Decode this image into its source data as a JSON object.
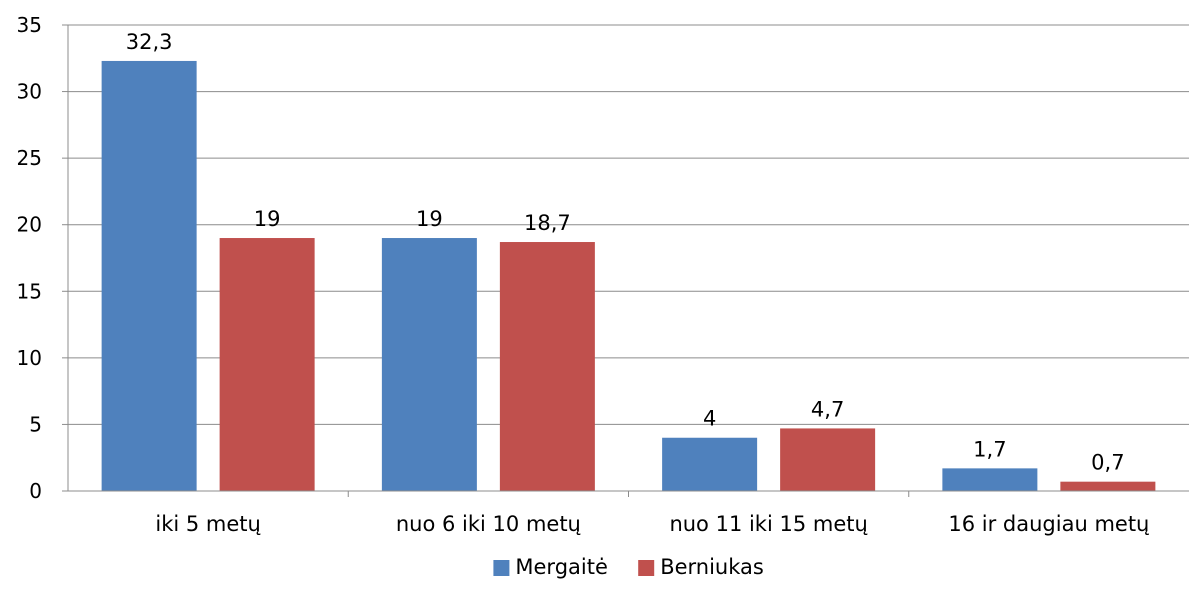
{
  "chart_data": {
    "type": "bar",
    "categories": [
      "iki 5 metų",
      "nuo 6 iki 10 metų",
      "nuo 11 iki 15 metų",
      "16 ir daugiau metų"
    ],
    "series": [
      {
        "name": "Mergaitė",
        "color": "#4F81BD",
        "values": [
          32.3,
          19,
          4,
          1.7
        ],
        "labels": [
          "32,3",
          "19",
          "4",
          "1,7"
        ]
      },
      {
        "name": "Berniukas",
        "color": "#C0504D",
        "values": [
          19,
          18.7,
          4.7,
          0.7
        ],
        "labels": [
          "19",
          "18,7",
          "4,7",
          "0,7"
        ]
      }
    ],
    "yticks": [
      "0",
      "5",
      "10",
      "15",
      "20",
      "25",
      "30",
      "35"
    ],
    "ylim": [
      0,
      35
    ],
    "grid": true,
    "legend": "bottom",
    "title": "",
    "xlabel": "",
    "ylabel": ""
  }
}
